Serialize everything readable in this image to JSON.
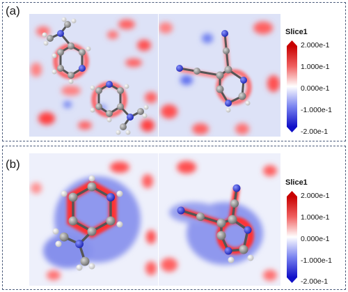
{
  "panels": [
    {
      "label": "(a)",
      "colorbar": {
        "title": "Slice1",
        "ticks": [
          "2.000e-1",
          "1.000e-1",
          "0.000e-1",
          "-1.000e-1",
          "-2.00e-1"
        ]
      }
    },
    {
      "label": "(b)",
      "colorbar": {
        "title": "Slice1",
        "ticks": [
          "2.000e-1",
          "1.000e-1",
          "0.000e-1",
          "-1.000e-1",
          "-2.00e-1"
        ]
      }
    }
  ],
  "colors": {
    "positive": "#e01818",
    "neutral": "#ffffff",
    "negative": "#1020e0",
    "atom_carbon": "#8c8c8c",
    "atom_nitrogen": "#2a3adb",
    "atom_hydrogen": "#f2f2f2"
  }
}
